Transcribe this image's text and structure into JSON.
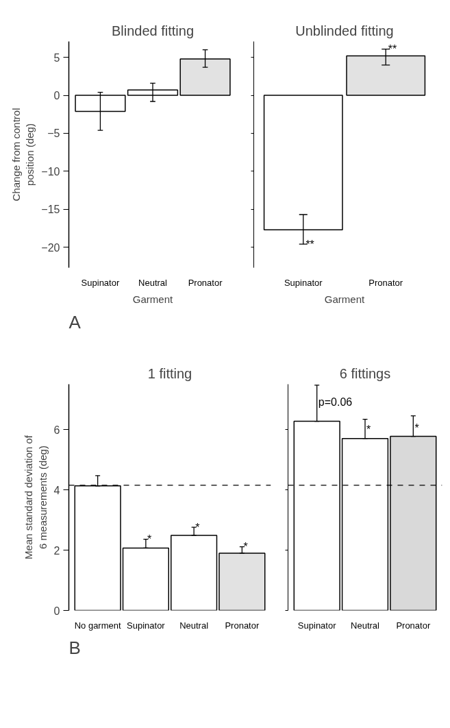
{
  "chart_data": [
    {
      "type": "bar",
      "title": "Blinded fitting",
      "ylabel": "Change from control position (deg)",
      "xlabel": "Garment",
      "categories": [
        "Supinator",
        "Neutral",
        "Pronator"
      ],
      "values": [
        -2.1,
        0.7,
        4.8
      ],
      "colors": [
        "#ffffff",
        "#ffffff",
        "#e2e2e2"
      ],
      "errors": [
        [
          -4.6,
          0.4
        ],
        [
          -0.8,
          1.6
        ],
        [
          3.7,
          6.0
        ]
      ],
      "ylim": [
        -22.7,
        7.1
      ],
      "yticks": [
        -20,
        -15,
        -10,
        -5,
        0,
        5
      ],
      "grid": false,
      "annotations": [
        "A"
      ]
    },
    {
      "type": "bar",
      "title": "Unblinded fitting",
      "xlabel": "Garment",
      "categories": [
        "Supinator",
        "Pronator"
      ],
      "values": [
        -17.7,
        5.2
      ],
      "colors": [
        "#ffffff",
        "#e2e2e2"
      ],
      "errors": [
        [
          -19.6,
          -15.7
        ],
        [
          4.0,
          6.1
        ]
      ],
      "ylim": [
        -22.7,
        7.1
      ],
      "yticks": [
        -20,
        -15,
        -10,
        -5,
        0,
        5
      ],
      "tick_labels": "x",
      "grid": false,
      "annotations": [
        {
          "text": "**",
          "x": "Supinator",
          "y": -19.6
        },
        {
          "text": "**",
          "x": "Pronator",
          "y": 6.1
        }
      ]
    },
    {
      "type": "bar",
      "title": "1 fitting",
      "ylabel": "Mean standard deviation of 6 measurements (deg)",
      "categories": [
        "No garment",
        "Supinator",
        "Neutral",
        "Pronator"
      ],
      "values": [
        4.13,
        2.07,
        2.49,
        1.9
      ],
      "colors": [
        "#ffffff",
        "#ffffff",
        "#ffffff",
        "#e2e2e2"
      ],
      "errors": [
        [
          4.13,
          4.47
        ],
        [
          2.07,
          2.36
        ],
        [
          2.49,
          2.76
        ],
        [
          1.9,
          2.11
        ]
      ],
      "ylim": [
        0,
        7.5
      ],
      "yticks": [
        0,
        2,
        4,
        6
      ],
      "grid": false,
      "ref_lines": [
        {
          "axis": "y",
          "value": 4.15,
          "line_style": "dashed"
        }
      ],
      "annotations": [
        "B",
        {
          "text": "*",
          "x": "Supinator",
          "y": 2.36
        },
        {
          "text": "*",
          "x": "Neutral",
          "y": 2.76
        },
        {
          "text": "*",
          "x": "Pronator",
          "y": 2.11
        }
      ]
    },
    {
      "type": "bar",
      "title": "6 fittings",
      "categories": [
        "Supinator",
        "Neutral",
        "Pronator"
      ],
      "values": [
        6.27,
        5.7,
        5.77
      ],
      "colors": [
        "#ffffff",
        "#ffffff",
        "#d9d9d9"
      ],
      "errors": [
        [
          6.27,
          7.47
        ],
        [
          5.7,
          6.34
        ],
        [
          5.77,
          6.45
        ]
      ],
      "ylim": [
        0,
        7.5
      ],
      "yticks": [
        0,
        2,
        4,
        6
      ],
      "tick_labels": "x",
      "grid": false,
      "ref_lines": [
        {
          "axis": "y",
          "value": 4.15,
          "line_style": "dashed"
        }
      ],
      "annotations": [
        {
          "text": "p=0.06",
          "x": "Supinator",
          "y": 6.9
        },
        {
          "text": "*",
          "x": "Neutral",
          "y": 6.0
        },
        {
          "text": "*",
          "x": "Pronator",
          "y": 6.05
        }
      ]
    }
  ]
}
